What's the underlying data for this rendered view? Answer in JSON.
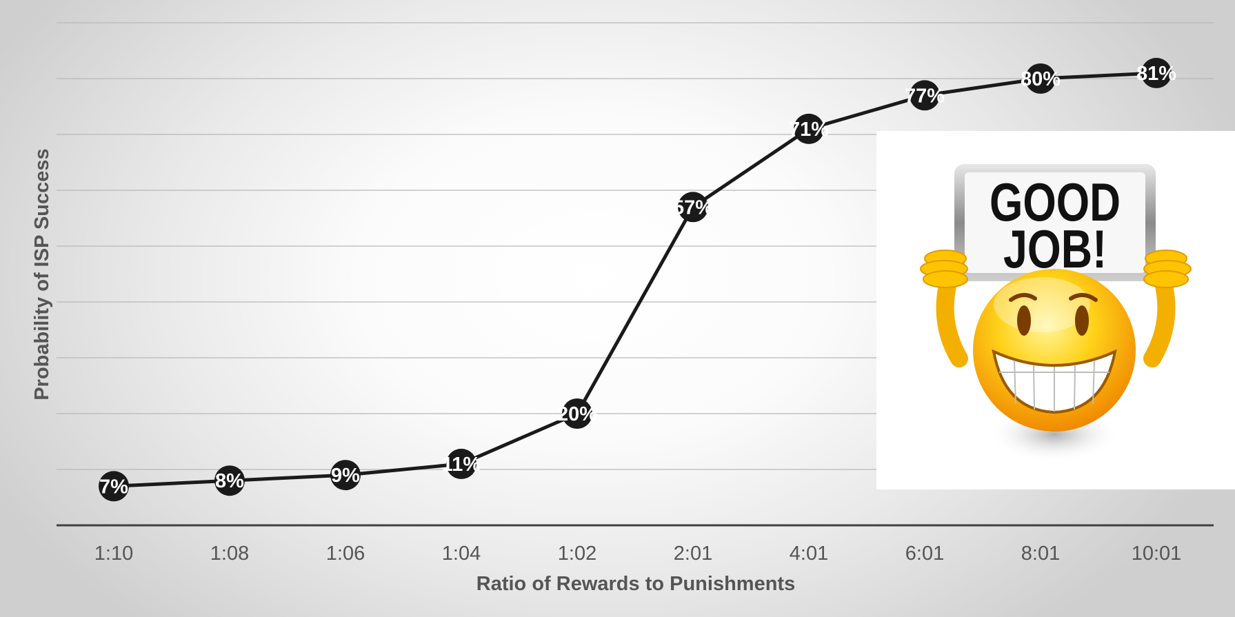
{
  "chart_data": {
    "type": "line",
    "categories": [
      "1:10",
      "1:08",
      "1:06",
      "1:04",
      "1:02",
      "2:01",
      "4:01",
      "6:01",
      "8:01",
      "10:01"
    ],
    "series": [
      {
        "values": [
          7,
          8,
          9,
          11,
          20,
          57,
          71,
          77,
          80,
          81
        ]
      }
    ],
    "data_labels": [
      "7%",
      "8%",
      "9%",
      "11%",
      "20%",
      "57%",
      "71%",
      "77%",
      "80%",
      "81%"
    ],
    "title": "",
    "xlabel": "Ratio of Rewards to Punishments",
    "ylabel": "Probability of ISP Success",
    "ylim": [
      0,
      90
    ],
    "y_gridlines": [
      10,
      20,
      30,
      40,
      50,
      60,
      70,
      80,
      90
    ],
    "grid": true,
    "legend": "none",
    "colors": {
      "line": "#1a1a1a",
      "marker": "#1a1a1a",
      "gridline": "#b8b8b8",
      "label_text": "#ffffff"
    }
  },
  "decoration": {
    "icon": "smiley-holding-sign-icon",
    "sign_line1": "GOOD",
    "sign_line2": "JOB!"
  }
}
